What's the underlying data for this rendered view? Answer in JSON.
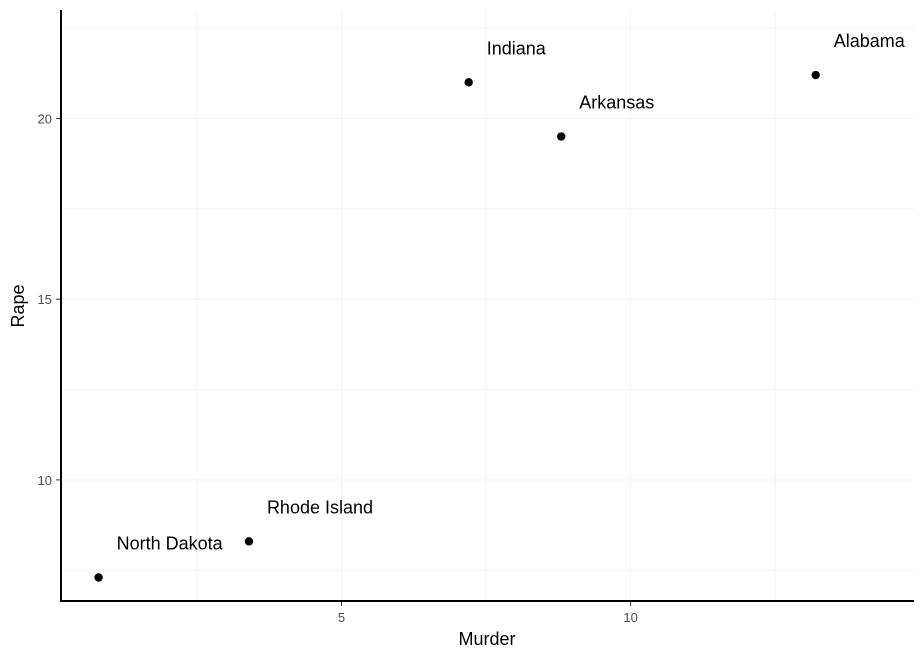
{
  "chart_data": {
    "type": "scatter",
    "xlabel": "Murder",
    "ylabel": "Rape",
    "xlim": [
      0.15,
      14.9
    ],
    "ylim": [
      6.65,
      23
    ],
    "x_ticks": [
      5,
      10
    ],
    "y_ticks": [
      10,
      15,
      20
    ],
    "grid": true,
    "legend": "none",
    "colors": {
      "point": "#000000",
      "axis": "#000000",
      "grid": "#f3f3f3"
    },
    "points": [
      {
        "label": "Alabama",
        "x": 13.2,
        "y": 21.2
      },
      {
        "label": "Indiana",
        "x": 7.2,
        "y": 21.0
      },
      {
        "label": "Arkansas",
        "x": 8.8,
        "y": 19.5
      },
      {
        "label": "Rhode Island",
        "x": 3.4,
        "y": 8.3
      },
      {
        "label": "North Dakota",
        "x": 0.8,
        "y": 7.3
      }
    ]
  }
}
